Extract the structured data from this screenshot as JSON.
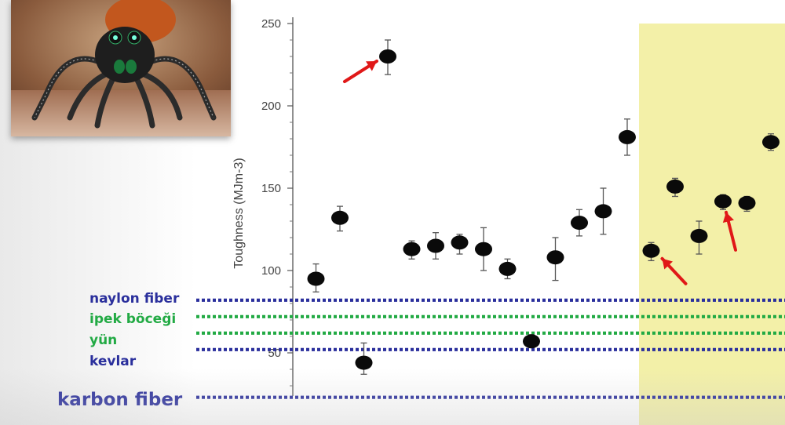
{
  "chart_data": {
    "type": "scatter",
    "ylabel": "Toughness (MJm-3)",
    "yticks": [
      50,
      100,
      150,
      200,
      250
    ],
    "ytick_labels": [
      "50",
      "100",
      "150",
      "200",
      "250"
    ],
    "ylim": [
      30,
      255
    ],
    "grid": false,
    "highlight": {
      "x_from": 14.5,
      "x_to": 23.5,
      "color": "#f3f0a8"
    },
    "points": [
      {
        "x": 1,
        "y": 95,
        "err_low": 87,
        "err_high": 104
      },
      {
        "x": 2,
        "y": 132,
        "err_low": 124,
        "err_high": 139
      },
      {
        "x": 3,
        "y": 44,
        "err_low": 37,
        "err_high": 56
      },
      {
        "x": 4,
        "y": 230,
        "err_low": 219,
        "err_high": 240,
        "arrow": true
      },
      {
        "x": 5,
        "y": 113,
        "err_low": 107,
        "err_high": 118
      },
      {
        "x": 6,
        "y": 115,
        "err_low": 107,
        "err_high": 123
      },
      {
        "x": 7,
        "y": 117,
        "err_low": 110,
        "err_high": 122
      },
      {
        "x": 8,
        "y": 113,
        "err_low": 100,
        "err_high": 126
      },
      {
        "x": 9,
        "y": 101,
        "err_low": 95,
        "err_high": 107
      },
      {
        "x": 10,
        "y": 57,
        "err_low": 54,
        "err_high": 61
      },
      {
        "x": 11,
        "y": 108,
        "err_low": 94,
        "err_high": 120
      },
      {
        "x": 12,
        "y": 129,
        "err_low": 121,
        "err_high": 137
      },
      {
        "x": 13,
        "y": 136,
        "err_low": 122,
        "err_high": 150
      },
      {
        "x": 14,
        "y": 181,
        "err_low": 170,
        "err_high": 192
      },
      {
        "x": 15,
        "y": 112,
        "err_low": 106,
        "err_high": 117,
        "arrow": true
      },
      {
        "x": 16,
        "y": 151,
        "err_low": 145,
        "err_high": 156
      },
      {
        "x": 17,
        "y": 121,
        "err_low": 110,
        "err_high": 130
      },
      {
        "x": 18,
        "y": 142,
        "err_low": 137,
        "err_high": 146,
        "arrow": true
      },
      {
        "x": 19,
        "y": 141,
        "err_low": 136,
        "err_high": 145
      },
      {
        "x": 20,
        "y": 178,
        "err_low": 173,
        "err_high": 183
      }
    ],
    "reference_lines": [
      {
        "name": "naylon fiber",
        "y": 82,
        "color": "#2a2f9c"
      },
      {
        "name": "ipek böceği",
        "y": 72,
        "color": "#22aa44"
      },
      {
        "name": "yün",
        "y": 62,
        "color": "#22aa44"
      },
      {
        "name": "kevlar",
        "y": 52,
        "color": "#2a2f9c"
      },
      {
        "name": "karbon fiber",
        "y": 23,
        "color": "#2a2f9c"
      }
    ]
  },
  "labels": {
    "naylon": "naylon fiber",
    "ipek": "ipek böceği",
    "yun": "yün",
    "kevlar": "kevlar",
    "karbon": "karbon fiber"
  },
  "colors": {
    "highlight": "#f3f0a8",
    "marker": "#0a0a0a",
    "arrow": "#e01818",
    "nylon_kevlar_carbon": "#2a2f9c",
    "silk_wool": "#22aa44"
  },
  "photo": {
    "icon": "jumping-spider-photo"
  }
}
